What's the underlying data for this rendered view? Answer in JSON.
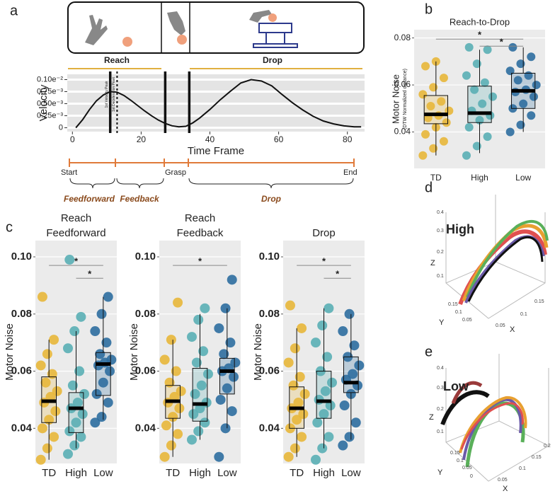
{
  "figure": {
    "panel_labels": [
      "a",
      "b",
      "c",
      "d",
      "e"
    ],
    "task_labels": [
      "Reach",
      "Drop"
    ],
    "timeline": {
      "events": [
        "Start",
        "Grasp",
        "End"
      ],
      "phases": [
        "Feedforward",
        "Feedback",
        "Drop"
      ]
    }
  },
  "chart_data": [
    {
      "type": "line",
      "xlabel": "Time Frame",
      "ylabel": "Velocity",
      "color": "#111111",
      "x": [
        1,
        3,
        5,
        7,
        9,
        11,
        13,
        15,
        17,
        19,
        21,
        23,
        25,
        27,
        29,
        31,
        33,
        35,
        37,
        40,
        43,
        46,
        49,
        52,
        55,
        58,
        61,
        64,
        67,
        70,
        73,
        76,
        79,
        82,
        84
      ],
      "values": [
        0,
        0.00017,
        0.00038,
        0.00056,
        0.00068,
        0.00075,
        0.00074,
        0.00067,
        0.00057,
        0.00046,
        0.00035,
        0.00025,
        0.00016,
        9e-05,
        4e-05,
        2e-05,
        3e-05,
        0.0001,
        0.0002,
        0.00038,
        0.00058,
        0.00076,
        0.00093,
        0.001,
        0.00097,
        0.00087,
        0.00069,
        0.00052,
        0.00037,
        0.00024,
        0.00014,
        8e-05,
        4e-05,
        2e-05,
        2e-05
      ],
      "xlim": [
        -1.5,
        85
      ],
      "xticks": [
        0,
        20,
        40,
        60,
        80
      ],
      "ylim": [
        -8e-05,
        0.00111
      ],
      "yticks": [
        0,
        {
          "value": 0.00025,
          "label": "0.25e⁻³"
        },
        {
          "value": 0.0005,
          "label": "0.50e⁻³"
        },
        {
          "value": 0.00075,
          "label": "0.75e⁻³"
        },
        {
          "value": 0.001,
          "label": "0.10e⁻²"
        }
      ],
      "grid": true,
      "vlines": [
        {
          "x": 11,
          "style": "solid"
        },
        {
          "x": 13,
          "style": "dotted"
        },
        {
          "x": 27,
          "style": "solid"
        },
        {
          "x": 34,
          "style": "solid"
        }
      ],
      "annotations": [
        {
          "text": "1st Velocity Peak",
          "x": 10
        },
        {
          "text": "1st Deceleration Peak",
          "x": 12
        }
      ]
    },
    {
      "type": "box",
      "title": [
        "Reach-to-Drop"
      ],
      "ylabel": "Motor Noise",
      "ylabel_sub": "(DTW Normalized distance)",
      "categories": [
        "TD",
        "High",
        "Low"
      ],
      "colors": [
        "#e8b73a",
        "#5aafb5",
        "#2e6ea0"
      ],
      "ylim": [
        0.0245,
        0.0835
      ],
      "yticks": [
        0.04,
        0.06,
        0.08
      ],
      "grid": true,
      "boxes": [
        {
          "whislo": 0.03,
          "q1": 0.0435,
          "median": 0.0475,
          "q3": 0.0555,
          "whishi": 0.07,
          "points": [
            0.03,
            0.033,
            0.036,
            0.039,
            0.042,
            0.044,
            0.046,
            0.047,
            0.049,
            0.051,
            0.053,
            0.056,
            0.059,
            0.063,
            0.068,
            0.07
          ]
        },
        {
          "whislo": 0.031,
          "q1": 0.044,
          "median": 0.048,
          "q3": 0.0595,
          "whishi": 0.075,
          "points": [
            0.03,
            0.034,
            0.038,
            0.042,
            0.045,
            0.047,
            0.049,
            0.052,
            0.055,
            0.058,
            0.061,
            0.064,
            0.069,
            0.075,
            0.076
          ]
        },
        {
          "whislo": 0.04,
          "q1": 0.05,
          "median": 0.0575,
          "q3": 0.065,
          "whishi": 0.076,
          "points": [
            0.04,
            0.043,
            0.047,
            0.05,
            0.052,
            0.055,
            0.057,
            0.058,
            0.06,
            0.062,
            0.064,
            0.066,
            0.069,
            0.072,
            0.076
          ]
        }
      ],
      "significance": [
        {
          "groups": [
            "TD",
            "Low"
          ],
          "y": 0.0795,
          "label": "*"
        },
        {
          "groups": [
            "High",
            "Low"
          ],
          "y": 0.0765,
          "label": "*"
        }
      ]
    },
    {
      "type": "box",
      "title": [
        "Reach",
        "Feedforward"
      ],
      "ylabel": "Motor Noise",
      "categories": [
        "TD",
        "High",
        "Low"
      ],
      "colors": [
        "#e8b73a",
        "#5aafb5",
        "#2e6ea0"
      ],
      "ylim": [
        0.0277,
        0.1057
      ],
      "yticks": [
        0.04,
        0.06,
        0.08,
        {
          "value": 0.1,
          "label": "0.10"
        }
      ],
      "grid": true,
      "boxes": [
        {
          "whislo": 0.029,
          "q1": 0.042,
          "median": 0.0495,
          "q3": 0.058,
          "whishi": 0.071,
          "points": [
            0.029,
            0.033,
            0.037,
            0.04,
            0.043,
            0.046,
            0.049,
            0.051,
            0.053,
            0.056,
            0.059,
            0.062,
            0.066,
            0.071,
            0.086
          ]
        },
        {
          "whislo": 0.033,
          "q1": 0.0385,
          "median": 0.047,
          "q3": 0.0525,
          "whishi": 0.074,
          "points": [
            0.031,
            0.034,
            0.037,
            0.039,
            0.042,
            0.045,
            0.047,
            0.049,
            0.052,
            0.055,
            0.06,
            0.068,
            0.074,
            0.079,
            0.099
          ]
        },
        {
          "whislo": 0.043,
          "q1": 0.0515,
          "median": 0.0625,
          "q3": 0.0665,
          "whishi": 0.086,
          "points": [
            0.042,
            0.044,
            0.049,
            0.052,
            0.056,
            0.06,
            0.062,
            0.063,
            0.064,
            0.066,
            0.07,
            0.074,
            0.08,
            0.086
          ]
        }
      ],
      "significance": [
        {
          "groups": [
            "TD",
            "Low"
          ],
          "y": 0.097,
          "label": "*"
        },
        {
          "groups": [
            "High",
            "Low"
          ],
          "y": 0.0925,
          "label": "*"
        }
      ]
    },
    {
      "type": "box",
      "title": [
        "Reach",
        "Feedback"
      ],
      "ylabel": "Motor Noise",
      "categories": [
        "TD",
        "High",
        "Low"
      ],
      "colors": [
        "#e8b73a",
        "#5aafb5",
        "#2e6ea0"
      ],
      "ylim": [
        0.0277,
        0.1057
      ],
      "yticks": [
        0.04,
        0.06,
        0.08,
        {
          "value": 0.1,
          "label": "0.10"
        }
      ],
      "grid": true,
      "boxes": [
        {
          "whislo": 0.03,
          "q1": 0.0435,
          "median": 0.0495,
          "q3": 0.055,
          "whishi": 0.071,
          "points": [
            0.03,
            0.034,
            0.038,
            0.041,
            0.044,
            0.047,
            0.049,
            0.051,
            0.053,
            0.056,
            0.06,
            0.064,
            0.071,
            0.084
          ]
        },
        {
          "whislo": 0.036,
          "q1": 0.0425,
          "median": 0.0485,
          "q3": 0.061,
          "whishi": 0.08,
          "points": [
            0.036,
            0.039,
            0.042,
            0.045,
            0.047,
            0.049,
            0.052,
            0.055,
            0.059,
            0.063,
            0.067,
            0.072,
            0.078,
            0.082
          ]
        },
        {
          "whislo": 0.04,
          "q1": 0.052,
          "median": 0.06,
          "q3": 0.0645,
          "whishi": 0.082,
          "points": [
            0.03,
            0.04,
            0.046,
            0.05,
            0.054,
            0.058,
            0.06,
            0.061,
            0.063,
            0.066,
            0.07,
            0.075,
            0.082,
            0.092
          ]
        }
      ],
      "significance": [
        {
          "groups": [
            "TD",
            "Low"
          ],
          "y": 0.097,
          "label": "*"
        }
      ]
    },
    {
      "type": "box",
      "title": [
        "Drop"
      ],
      "ylabel": "Motor Noise",
      "categories": [
        "TD",
        "High",
        "Low"
      ],
      "colors": [
        "#e8b73a",
        "#5aafb5",
        "#2e6ea0"
      ],
      "ylim": [
        0.0277,
        0.1057
      ],
      "yticks": [
        0.04,
        0.06,
        0.08,
        {
          "value": 0.1,
          "label": "0.10"
        }
      ],
      "grid": true,
      "boxes": [
        {
          "whislo": 0.03,
          "q1": 0.04,
          "median": 0.047,
          "q3": 0.0545,
          "whishi": 0.075,
          "points": [
            0.03,
            0.033,
            0.037,
            0.04,
            0.043,
            0.045,
            0.047,
            0.049,
            0.052,
            0.055,
            0.058,
            0.063,
            0.068,
            0.075,
            0.083
          ]
        },
        {
          "whislo": 0.033,
          "q1": 0.0435,
          "median": 0.0495,
          "q3": 0.06,
          "whishi": 0.082,
          "points": [
            0.029,
            0.033,
            0.037,
            0.042,
            0.045,
            0.048,
            0.05,
            0.053,
            0.056,
            0.06,
            0.065,
            0.07,
            0.076,
            0.082
          ]
        },
        {
          "whislo": 0.036,
          "q1": 0.0525,
          "median": 0.056,
          "q3": 0.065,
          "whishi": 0.08,
          "points": [
            0.034,
            0.037,
            0.042,
            0.048,
            0.052,
            0.055,
            0.057,
            0.059,
            0.062,
            0.065,
            0.069,
            0.074,
            0.08
          ]
        }
      ],
      "significance": [
        {
          "groups": [
            "TD",
            "Low"
          ],
          "y": 0.097,
          "label": "*"
        },
        {
          "groups": [
            "High",
            "Low"
          ],
          "y": 0.0925,
          "label": "*"
        }
      ]
    }
  ],
  "panel_d": {
    "label": "High",
    "axes": [
      "Z",
      "Y",
      "X"
    ],
    "zticks": [
      0.4,
      0.3,
      0.2,
      0.1
    ],
    "yticks": [
      0.15,
      0.1,
      0.05
    ],
    "xticks": [
      0.05,
      0.1,
      0.15
    ]
  },
  "panel_e": {
    "label": "Low",
    "axes": [
      "Z",
      "Y",
      "X"
    ],
    "zticks": [
      0.4,
      0.3,
      0.2,
      0.1
    ],
    "yticks": [
      0.15,
      0.1,
      0.05,
      0
    ],
    "xticks": [
      0.05,
      0.1,
      0.15,
      0.2
    ]
  }
}
